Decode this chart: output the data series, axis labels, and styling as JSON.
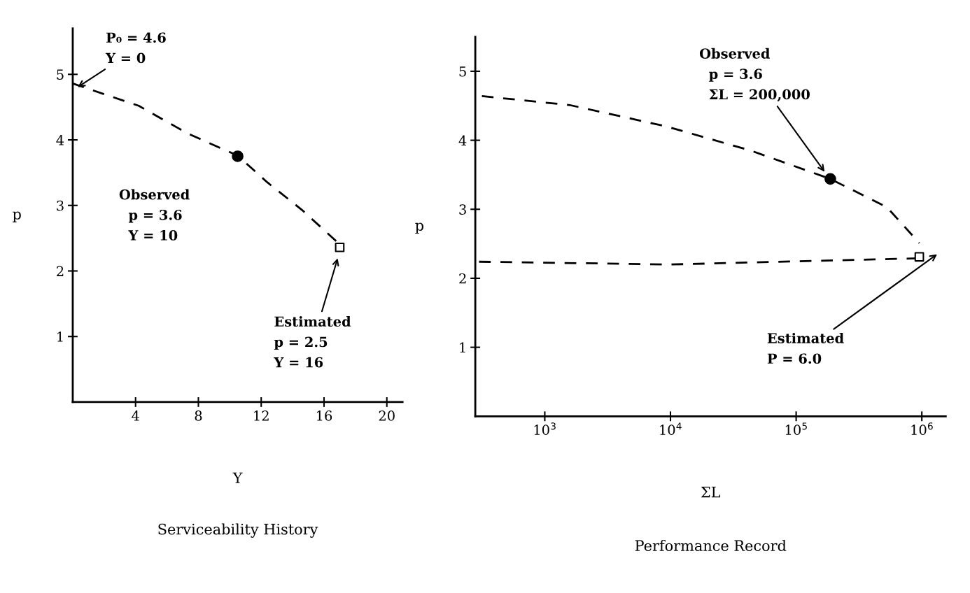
{
  "chart_data": [
    {
      "type": "line",
      "title": "Serviceability History",
      "xlabel": "Y",
      "ylabel": "p",
      "xlim": [
        0,
        21
      ],
      "ylim": [
        0,
        5.7
      ],
      "xticks": [
        4,
        8,
        12,
        16,
        20
      ],
      "yticks": [
        1,
        2,
        3,
        4,
        5
      ],
      "grid": false,
      "legend": false,
      "series": [
        {
          "color": "#000000",
          "line_style": "dashed",
          "marker": "none",
          "x": [
            0,
            4.2,
            7.3,
            10.5,
            12.4,
            14.6,
            16.8
          ],
          "values": [
            4.86,
            4.52,
            4.1,
            3.76,
            3.35,
            2.93,
            2.45
          ]
        },
        {
          "type": "scatter",
          "color": "#000000",
          "marker": "circle",
          "x": [
            10.5
          ],
          "values": [
            3.75
          ]
        },
        {
          "type": "scatter",
          "color": "#000000",
          "marker": "square",
          "x": [
            17.0
          ],
          "values": [
            2.36
          ]
        }
      ],
      "annotations": [
        "P₀ = 4.6\nY = 0",
        "Observed\n  p = 3.6\n  Y = 10",
        "Estimated\np = 2.5\nY = 16"
      ]
    },
    {
      "type": "line",
      "title": "Performance Record",
      "xlabel": "ΣL",
      "ylabel": "p",
      "log": "x",
      "xlim": [
        280,
        1550000
      ],
      "ylim": [
        0,
        5.5
      ],
      "xticks": [
        {
          "value": 1000,
          "label": "10$^{3}$"
        },
        {
          "value": 10000,
          "label": "10$^{4}$"
        },
        {
          "value": 100000,
          "label": "10$^{5}$"
        },
        {
          "value": 1000000,
          "label": "10$^{6}$"
        }
      ],
      "yticks": [
        1,
        2,
        3,
        4,
        5
      ],
      "grid": false,
      "legend": false,
      "series": [
        {
          "color": "#000000",
          "line_style": "dashed",
          "marker": "none",
          "x": [
            316,
            1580,
            9300,
            43600,
            187000,
            528000,
            955000
          ],
          "values": [
            4.64,
            4.51,
            4.2,
            3.85,
            3.44,
            3.03,
            2.51
          ]
        },
        {
          "color": "#000000",
          "line_style": "dashed",
          "marker": "none",
          "x": [
            300,
            10000,
            955000
          ],
          "values": [
            2.24,
            2.2,
            2.29
          ]
        },
        {
          "type": "scatter",
          "color": "#000000",
          "marker": "circle",
          "x": [
            187000
          ],
          "values": [
            3.44
          ]
        },
        {
          "type": "scatter",
          "color": "#000000",
          "marker": "square",
          "x": [
            955000
          ],
          "values": [
            2.31
          ]
        }
      ],
      "annotations": [
        "Observed\n  p = 3.6\n  ΣL = 200,000",
        "Estimated\nP = 6.0"
      ]
    }
  ]
}
